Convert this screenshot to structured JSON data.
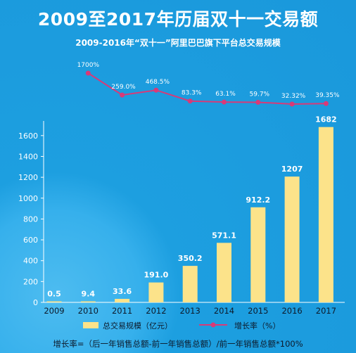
{
  "title": "2009至2017年历届双十一交易额",
  "formula": "增长率=（后一年销售总额-前一年销售总额）/前一年销售总额*100%",
  "colors": {
    "background": "#1d9fe0",
    "bar": "#fce38a",
    "line": "#d83a78",
    "text": "#ffffff",
    "dark_text": "#0d1a2b"
  },
  "chart_data": [
    {
      "type": "line",
      "title": "2009-2016年“双十一”阿里巴巴旗下平台总交易规模",
      "name": "增长率（%）",
      "categories": [
        "2010",
        "2011",
        "2012",
        "2013",
        "2014",
        "2015",
        "2016",
        "2017"
      ],
      "values": [
        1700,
        259.0,
        468.5,
        83.3,
        63.1,
        59.7,
        32.32,
        39.35
      ],
      "labels": [
        "1700%",
        "259.0%",
        "468.5%",
        "83.3%",
        "63.1%",
        "59.7%",
        "32.32%",
        "39.35%"
      ]
    },
    {
      "type": "bar",
      "name": "总交易规模（亿元）",
      "categories": [
        "2009",
        "2010",
        "2011",
        "2012",
        "2013",
        "2014",
        "2015",
        "2016",
        "2017"
      ],
      "values": [
        0.5,
        9.4,
        33.6,
        191.0,
        350.2,
        571.1,
        912.2,
        1207,
        1682
      ],
      "labels": [
        "0.5",
        "9.4",
        "33.6",
        "191.0",
        "350.2",
        "571.1",
        "912.2",
        "1207",
        "1682"
      ],
      "ylim": [
        0,
        1700
      ],
      "yticks": [
        "0",
        "200",
        "400",
        "600",
        "800",
        "1000",
        "1200",
        "1400",
        "1600"
      ],
      "legend": [
        "总交易规模（亿元）",
        "增长率（%）"
      ],
      "legend_position": "bottom"
    }
  ]
}
